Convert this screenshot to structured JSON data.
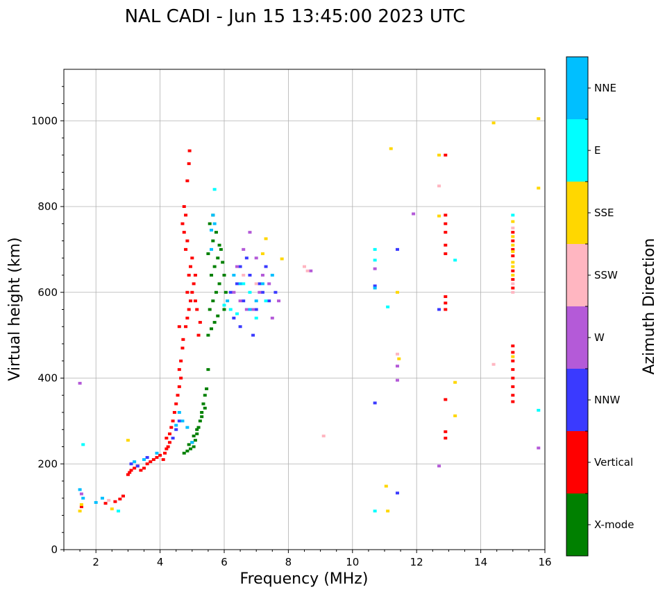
{
  "chart_data": {
    "type": "scatter",
    "title": "NAL CADI - Jun 15 13:45:00 2023 UTC",
    "xlabel": "Frequency (MHz)",
    "ylabel": "Virtual height (km)",
    "xlim": [
      1,
      16
    ],
    "ylim": [
      0,
      1120
    ],
    "xticks": [
      2,
      4,
      6,
      8,
      10,
      12,
      14,
      16
    ],
    "yticks": [
      0,
      200,
      400,
      600,
      800,
      1000
    ],
    "grid": true,
    "colorbar": {
      "label": "Azimuth Direction",
      "categories": [
        "X-mode",
        "Vertical",
        "NNW",
        "W",
        "SSW",
        "SSE",
        "E",
        "NNE"
      ],
      "colors": {
        "X-mode": "#008000",
        "Vertical": "#ff0000",
        "NNW": "#3a3aff",
        "W": "#b45ad8",
        "SSW": "#ffb6c1",
        "SSE": "#ffd700",
        "E": "#00ffff",
        "NNE": "#00bfff"
      }
    },
    "series": [
      {
        "name": "X-mode",
        "points": [
          [
            4.75,
            225
          ],
          [
            4.85,
            230
          ],
          [
            4.95,
            235
          ],
          [
            5.05,
            240
          ],
          [
            5.1,
            255
          ],
          [
            5.15,
            270
          ],
          [
            5.2,
            285
          ],
          [
            5.25,
            300
          ],
          [
            5.3,
            320
          ],
          [
            5.35,
            340
          ],
          [
            5.4,
            360
          ],
          [
            5.45,
            375
          ],
          [
            5.5,
            420
          ],
          [
            4.9,
            245
          ],
          [
            5.0,
            250
          ],
          [
            5.05,
            265
          ],
          [
            5.15,
            280
          ],
          [
            5.3,
            310
          ],
          [
            5.4,
            330
          ],
          [
            5.5,
            500
          ],
          [
            5.6,
            515
          ],
          [
            5.7,
            530
          ],
          [
            5.8,
            545
          ],
          [
            5.55,
            560
          ],
          [
            5.65,
            580
          ],
          [
            5.75,
            600
          ],
          [
            5.85,
            620
          ],
          [
            5.6,
            640
          ],
          [
            5.7,
            660
          ],
          [
            5.8,
            680
          ],
          [
            5.9,
            700
          ],
          [
            5.65,
            720
          ],
          [
            5.75,
            740
          ],
          [
            5.55,
            760
          ],
          [
            5.65,
            780
          ],
          [
            6.0,
            560
          ],
          [
            6.05,
            600
          ],
          [
            6.0,
            640
          ],
          [
            5.95,
            670
          ],
          [
            5.5,
            690
          ],
          [
            5.85,
            710
          ]
        ]
      },
      {
        "name": "Vertical",
        "points": [
          [
            1.55,
            100
          ],
          [
            2.3,
            108
          ],
          [
            2.6,
            112
          ],
          [
            2.75,
            118
          ],
          [
            2.85,
            125
          ],
          [
            3.0,
            175
          ],
          [
            3.05,
            180
          ],
          [
            3.1,
            185
          ],
          [
            3.2,
            190
          ],
          [
            3.3,
            195
          ],
          [
            3.4,
            185
          ],
          [
            3.5,
            190
          ],
          [
            3.6,
            200
          ],
          [
            3.7,
            205
          ],
          [
            3.8,
            210
          ],
          [
            3.9,
            215
          ],
          [
            4.0,
            220
          ],
          [
            4.1,
            210
          ],
          [
            4.15,
            225
          ],
          [
            4.2,
            235
          ],
          [
            4.25,
            240
          ],
          [
            4.3,
            250
          ],
          [
            4.2,
            260
          ],
          [
            4.3,
            270
          ],
          [
            4.35,
            285
          ],
          [
            4.4,
            300
          ],
          [
            4.45,
            320
          ],
          [
            4.5,
            340
          ],
          [
            4.55,
            360
          ],
          [
            4.6,
            380
          ],
          [
            4.65,
            400
          ],
          [
            4.6,
            420
          ],
          [
            4.65,
            440
          ],
          [
            4.7,
            470
          ],
          [
            4.72,
            490
          ],
          [
            4.6,
            520
          ],
          [
            4.8,
            520
          ],
          [
            4.85,
            540
          ],
          [
            4.9,
            560
          ],
          [
            4.95,
            580
          ],
          [
            5.0,
            600
          ],
          [
            5.05,
            620
          ],
          [
            5.1,
            640
          ],
          [
            5.15,
            560
          ],
          [
            4.85,
            600
          ],
          [
            4.9,
            640
          ],
          [
            4.95,
            660
          ],
          [
            5.0,
            680
          ],
          [
            4.8,
            700
          ],
          [
            4.85,
            720
          ],
          [
            4.75,
            740
          ],
          [
            4.7,
            760
          ],
          [
            4.8,
            780
          ],
          [
            4.75,
            800
          ],
          [
            4.85,
            860
          ],
          [
            4.9,
            900
          ],
          [
            4.92,
            930
          ],
          [
            5.2,
            500
          ],
          [
            5.25,
            530
          ],
          [
            5.1,
            580
          ],
          [
            12.9,
            560
          ],
          [
            12.9,
            575
          ],
          [
            12.9,
            590
          ],
          [
            12.9,
            690
          ],
          [
            12.9,
            710
          ],
          [
            12.9,
            740
          ],
          [
            12.9,
            760
          ],
          [
            12.9,
            780
          ],
          [
            12.9,
            920
          ],
          [
            12.9,
            260
          ],
          [
            12.9,
            275
          ],
          [
            12.9,
            350
          ],
          [
            15.0,
            345
          ],
          [
            15.0,
            360
          ],
          [
            15.0,
            380
          ],
          [
            15.0,
            400
          ],
          [
            15.0,
            420
          ],
          [
            15.0,
            440
          ],
          [
            15.0,
            460
          ],
          [
            15.0,
            475
          ],
          [
            15.0,
            610
          ],
          [
            15.0,
            630
          ],
          [
            15.0,
            650
          ],
          [
            15.0,
            685
          ],
          [
            15.0,
            700
          ],
          [
            15.0,
            720
          ],
          [
            15.0,
            740
          ]
        ]
      },
      {
        "name": "NNW",
        "points": [
          [
            3.1,
            200
          ],
          [
            3.3,
            195
          ],
          [
            3.6,
            215
          ],
          [
            4.4,
            260
          ],
          [
            4.5,
            280
          ],
          [
            4.6,
            300
          ],
          [
            6.2,
            600
          ],
          [
            6.4,
            620
          ],
          [
            6.5,
            660
          ],
          [
            6.6,
            580
          ],
          [
            6.8,
            640
          ],
          [
            7.0,
            560
          ],
          [
            7.2,
            600
          ],
          [
            7.4,
            580
          ],
          [
            6.9,
            500
          ],
          [
            6.5,
            520
          ],
          [
            6.3,
            540
          ],
          [
            7.1,
            620
          ],
          [
            7.6,
            600
          ],
          [
            10.7,
            342
          ],
          [
            10.7,
            615
          ],
          [
            11.4,
            132
          ],
          [
            11.4,
            700
          ],
          [
            12.7,
            560
          ],
          [
            6.7,
            680
          ],
          [
            7.3,
            660
          ]
        ]
      },
      {
        "name": "W",
        "points": [
          [
            1.5,
            388
          ],
          [
            1.55,
            130
          ],
          [
            6.4,
            660
          ],
          [
            6.6,
            700
          ],
          [
            6.8,
            740
          ],
          [
            7.0,
            680
          ],
          [
            7.2,
            640
          ],
          [
            7.4,
            620
          ],
          [
            7.7,
            580
          ],
          [
            6.9,
            560
          ],
          [
            6.3,
            600
          ],
          [
            6.7,
            560
          ],
          [
            7.5,
            540
          ],
          [
            8.7,
            650
          ],
          [
            10.7,
            655
          ],
          [
            11.4,
            395
          ],
          [
            11.4,
            428
          ],
          [
            11.9,
            783
          ],
          [
            12.7,
            195
          ],
          [
            15.8,
            237
          ],
          [
            6.5,
            580
          ],
          [
            7.1,
            600
          ]
        ]
      },
      {
        "name": "SSW",
        "points": [
          [
            2.4,
            115
          ],
          [
            8.5,
            660
          ],
          [
            8.6,
            650
          ],
          [
            9.1,
            265
          ],
          [
            11.4,
            456
          ],
          [
            12.7,
            848
          ],
          [
            14.4,
            432
          ],
          [
            15.0,
            600
          ],
          [
            15.0,
            620
          ],
          [
            15.0,
            750
          ],
          [
            6.6,
            640
          ],
          [
            7.0,
            620
          ]
        ]
      },
      {
        "name": "SSE",
        "points": [
          [
            1.5,
            90
          ],
          [
            1.55,
            105
          ],
          [
            2.5,
            95
          ],
          [
            3.0,
            255
          ],
          [
            7.3,
            725
          ],
          [
            7.8,
            678
          ],
          [
            11.2,
            935
          ],
          [
            11.05,
            148
          ],
          [
            11.1,
            90
          ],
          [
            11.4,
            600
          ],
          [
            11.45,
            445
          ],
          [
            12.7,
            778
          ],
          [
            12.7,
            920
          ],
          [
            13.2,
            390
          ],
          [
            13.2,
            312
          ],
          [
            14.4,
            995
          ],
          [
            15.0,
            640
          ],
          [
            15.0,
            660
          ],
          [
            15.0,
            670
          ],
          [
            15.0,
            695
          ],
          [
            15.0,
            710
          ],
          [
            15.0,
            730
          ],
          [
            15.0,
            765
          ],
          [
            15.0,
            450
          ],
          [
            15.8,
            1005
          ],
          [
            15.8,
            843
          ],
          [
            7.2,
            690
          ]
        ]
      },
      {
        "name": "E",
        "points": [
          [
            1.6,
            245
          ],
          [
            2.7,
            90
          ],
          [
            10.7,
            90
          ],
          [
            10.7,
            700
          ],
          [
            10.7,
            675
          ],
          [
            11.1,
            566
          ],
          [
            13.2,
            675
          ],
          [
            15.8,
            325
          ],
          [
            6.2,
            560
          ],
          [
            6.4,
            550
          ],
          [
            6.8,
            600
          ],
          [
            7.0,
            540
          ],
          [
            7.3,
            580
          ],
          [
            6.6,
            620
          ],
          [
            6.0,
            570
          ],
          [
            5.7,
            840
          ],
          [
            15.0,
            780
          ]
        ]
      },
      {
        "name": "NNE",
        "points": [
          [
            1.5,
            140
          ],
          [
            1.6,
            120
          ],
          [
            2.0,
            110
          ],
          [
            2.2,
            120
          ],
          [
            3.2,
            205
          ],
          [
            3.5,
            210
          ],
          [
            3.9,
            225
          ],
          [
            4.5,
            290
          ],
          [
            4.6,
            320
          ],
          [
            4.7,
            300
          ],
          [
            4.85,
            285
          ],
          [
            5.0,
            250
          ],
          [
            5.6,
            700
          ],
          [
            5.6,
            745
          ],
          [
            5.7,
            760
          ],
          [
            6.1,
            580
          ],
          [
            6.5,
            620
          ],
          [
            6.3,
            640
          ],
          [
            7.0,
            580
          ],
          [
            7.5,
            640
          ],
          [
            5.65,
            780
          ],
          [
            10.7,
            610
          ],
          [
            6.8,
            560
          ],
          [
            7.2,
            620
          ]
        ]
      }
    ]
  }
}
